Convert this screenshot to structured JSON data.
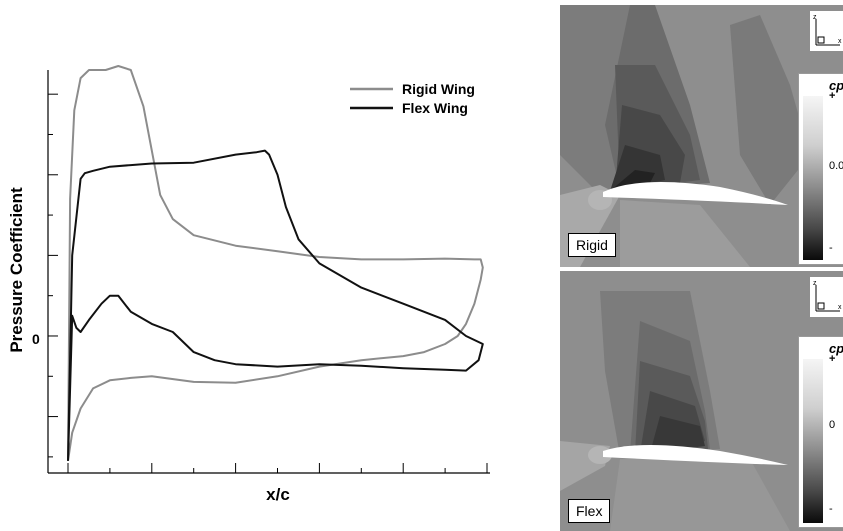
{
  "chart_data": {
    "type": "line",
    "xlabel": "x/c",
    "ylabel": "Pressure Coefficient",
    "y_tick_label": "0",
    "xlim": [
      0,
      1
    ],
    "ylim": [
      -1.7,
      3.3
    ],
    "legend_position": "top-right",
    "series": [
      {
        "name": "Rigid Wing",
        "color": "#8c8c8c",
        "points": [
          [
            0.0,
            -1.55
          ],
          [
            0.01,
            -1.2
          ],
          [
            0.03,
            -0.9
          ],
          [
            0.06,
            -0.65
          ],
          [
            0.1,
            -0.55
          ],
          [
            0.15,
            -0.52
          ],
          [
            0.2,
            -0.5
          ],
          [
            0.3,
            -0.57
          ],
          [
            0.4,
            -0.58
          ],
          [
            0.5,
            -0.5
          ],
          [
            0.6,
            -0.38
          ],
          [
            0.7,
            -0.3
          ],
          [
            0.8,
            -0.25
          ],
          [
            0.85,
            -0.2
          ],
          [
            0.9,
            -0.1
          ],
          [
            0.93,
            0.0
          ],
          [
            0.95,
            0.15
          ],
          [
            0.97,
            0.4
          ],
          [
            0.985,
            0.7
          ],
          [
            0.99,
            0.85
          ],
          [
            0.985,
            0.95
          ],
          [
            0.97,
            0.95
          ],
          [
            0.9,
            0.96
          ],
          [
            0.8,
            0.95
          ],
          [
            0.7,
            0.95
          ],
          [
            0.6,
            0.98
          ],
          [
            0.5,
            1.05
          ],
          [
            0.4,
            1.12
          ],
          [
            0.3,
            1.25
          ],
          [
            0.25,
            1.45
          ],
          [
            0.22,
            1.75
          ],
          [
            0.2,
            2.3
          ],
          [
            0.18,
            2.85
          ],
          [
            0.15,
            3.3
          ],
          [
            0.12,
            3.35
          ],
          [
            0.09,
            3.3
          ],
          [
            0.05,
            3.3
          ],
          [
            0.03,
            3.2
          ],
          [
            0.015,
            2.8
          ],
          [
            0.005,
            1.7
          ],
          [
            0.0,
            -1.55
          ]
        ]
      },
      {
        "name": "Flex Wing",
        "color": "#111111",
        "points": [
          [
            0.0,
            -1.55
          ],
          [
            0.01,
            0.25
          ],
          [
            0.02,
            0.1
          ],
          [
            0.03,
            0.05
          ],
          [
            0.05,
            0.2
          ],
          [
            0.08,
            0.4
          ],
          [
            0.1,
            0.5
          ],
          [
            0.12,
            0.5
          ],
          [
            0.15,
            0.3
          ],
          [
            0.2,
            0.15
          ],
          [
            0.25,
            0.05
          ],
          [
            0.3,
            -0.2
          ],
          [
            0.35,
            -0.3
          ],
          [
            0.4,
            -0.35
          ],
          [
            0.5,
            -0.38
          ],
          [
            0.6,
            -0.35
          ],
          [
            0.7,
            -0.37
          ],
          [
            0.8,
            -0.4
          ],
          [
            0.9,
            -0.42
          ],
          [
            0.95,
            -0.43
          ],
          [
            0.98,
            -0.3
          ],
          [
            0.99,
            -0.1
          ],
          [
            0.95,
            0.0
          ],
          [
            0.9,
            0.2
          ],
          [
            0.8,
            0.4
          ],
          [
            0.7,
            0.6
          ],
          [
            0.6,
            0.9
          ],
          [
            0.55,
            1.2
          ],
          [
            0.52,
            1.6
          ],
          [
            0.5,
            2.0
          ],
          [
            0.48,
            2.25
          ],
          [
            0.47,
            2.3
          ],
          [
            0.45,
            2.28
          ],
          [
            0.4,
            2.25
          ],
          [
            0.3,
            2.15
          ],
          [
            0.2,
            2.14
          ],
          [
            0.15,
            2.12
          ],
          [
            0.1,
            2.1
          ],
          [
            0.06,
            2.05
          ],
          [
            0.04,
            2.02
          ],
          [
            0.03,
            1.95
          ],
          [
            0.01,
            1.0
          ],
          [
            0.0,
            -1.55
          ]
        ]
      }
    ]
  },
  "contour_panels": [
    {
      "label": "Rigid",
      "colorbar": {
        "title": "cp",
        "tick_top": "+",
        "tick_mid": "0.0",
        "tick_bottom": "-"
      },
      "axis_triad": {
        "z": "z",
        "x": "x"
      }
    },
    {
      "label": "Flex",
      "colorbar": {
        "title": "cp",
        "tick_top": "+",
        "tick_mid": "0",
        "tick_bottom": "-"
      },
      "axis_triad": {
        "z": "z",
        "x": "x"
      }
    }
  ]
}
